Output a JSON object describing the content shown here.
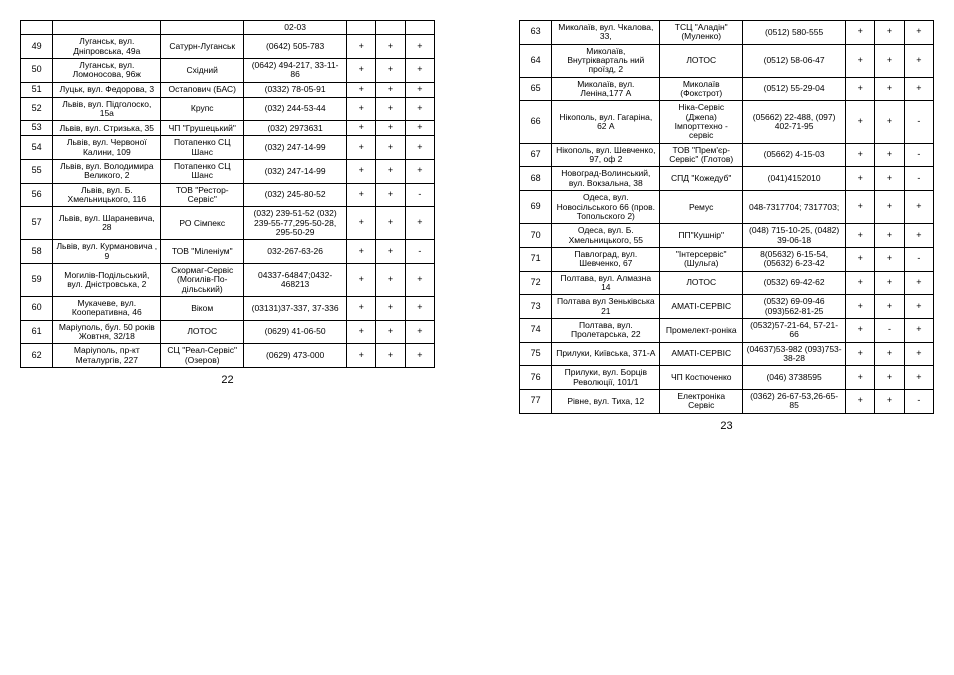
{
  "left": {
    "pagenum": "22",
    "rows": [
      {
        "n": "",
        "addr": "",
        "company": "",
        "phone": "02-03",
        "c1": "",
        "c2": "",
        "c3": ""
      },
      {
        "n": "49",
        "addr": "Луганськ, вул. Дніпровська, 49а",
        "company": "Сатурн-Луганськ",
        "phone": "(0642) 505-783",
        "c1": "+",
        "c2": "+",
        "c3": "+"
      },
      {
        "n": "50",
        "addr": "Луганськ, вул. Ломоносова, 96ж",
        "company": "Східний",
        "phone": "(0642) 494-217, 33-11-86",
        "c1": "+",
        "c2": "+",
        "c3": "+"
      },
      {
        "n": "51",
        "addr": "Луцьк, вул. Федорова, 3",
        "company": "Остапович (БАС)",
        "phone": "(0332) 78-05-91",
        "c1": "+",
        "c2": "+",
        "c3": "+"
      },
      {
        "n": "52",
        "addr": "Львів, вул. Підголоско, 15а",
        "company": "Крупс",
        "phone": "(032) 244-53-44",
        "c1": "+",
        "c2": "+",
        "c3": "+"
      },
      {
        "n": "53",
        "addr": "Львів, вул. Стризька, 35",
        "company": "ЧП \"Грушецький\"",
        "phone": "(032) 2973631",
        "c1": "+",
        "c2": "+",
        "c3": "+"
      },
      {
        "n": "54",
        "addr": "Львів, вул. Червоної Калини, 109",
        "company": "Потапенко СЦ Шанс",
        "phone": "(032) 247-14-99",
        "c1": "+",
        "c2": "+",
        "c3": "+"
      },
      {
        "n": "55",
        "addr": "Львів, вул. Володимира Великого, 2",
        "company": "Потапенко СЦ Шанс",
        "phone": "(032) 247-14-99",
        "c1": "+",
        "c2": "+",
        "c3": "+"
      },
      {
        "n": "56",
        "addr": "Львів, вул. Б. Хмельницького, 116",
        "company": "ТОВ \"Рестор-Сервіс\"",
        "phone": "(032) 245-80-52",
        "c1": "+",
        "c2": "+",
        "c3": "-"
      },
      {
        "n": "57",
        "addr": "Львів, вул. Шараневича, 28",
        "company": "РО Сімпекс",
        "phone": "(032) 239-51-52 (032) 239-55-77,295-50-28, 295-50-29",
        "c1": "+",
        "c2": "+",
        "c3": "+"
      },
      {
        "n": "58",
        "addr": "Львів, вул. Курмановича , 9",
        "company": "ТОВ \"Міленіум\"",
        "phone": "032-267-63-26",
        "c1": "+",
        "c2": "+",
        "c3": "-"
      },
      {
        "n": "59",
        "addr": "Могилів-Подільський, вул. Дністровська, 2",
        "company": "Скормаг-Сервіс (Могилів-По-дільський)",
        "phone": "04337-64847;0432-468213",
        "c1": "+",
        "c2": "+",
        "c3": "+"
      },
      {
        "n": "60",
        "addr": "Мукачеве, вул. Кооперативна, 46",
        "company": "Віком",
        "phone": "(03131)37-337, 37-336",
        "c1": "+",
        "c2": "+",
        "c3": "+"
      },
      {
        "n": "61",
        "addr": "Маріуполь, бул. 50 років Жовтня, 32/18",
        "company": "ЛОТОС",
        "phone": "(0629) 41-06-50",
        "c1": "+",
        "c2": "+",
        "c3": "+"
      },
      {
        "n": "62",
        "addr": "Маріуполь, пр-кт Металургів, 227",
        "company": "СЦ \"Реал-Сервіс\" (Озеров)",
        "phone": "(0629) 473-000",
        "c1": "+",
        "c2": "+",
        "c3": "+"
      }
    ]
  },
  "right": {
    "pagenum": "23",
    "rows": [
      {
        "n": "63",
        "addr": "Миколаїв, вул. Чкалова, 33,",
        "company": "ТСЦ \"Аладін\" (Муленко)",
        "phone": "(0512) 580-555",
        "c1": "+",
        "c2": "+",
        "c3": "+"
      },
      {
        "n": "64",
        "addr": "Миколаїв, Внутрікварталь ний проїзд, 2",
        "company": "ЛОТОС",
        "phone": "(0512) 58-06-47",
        "c1": "+",
        "c2": "+",
        "c3": "+"
      },
      {
        "n": "65",
        "addr": "Миколаїв, вул. Леніна,177 А",
        "company": "Миколаїв (Фокстрот)",
        "phone": "(0512) 55-29-04",
        "c1": "+",
        "c2": "+",
        "c3": "+"
      },
      {
        "n": "66",
        "addr": "Нікополь, вул. Гагаріна, 62 А",
        "company": "Ніка-Сервіс (Джепа) Імпорттехно - сервіс",
        "phone": "(05662) 22-488, (097) 402-71-95",
        "c1": "+",
        "c2": "+",
        "c3": "-"
      },
      {
        "n": "67",
        "addr": "Нікополь, вул. Шевченко, 97, оф 2",
        "company": "ТОВ \"Прем'єр-Сервіс\" (Глотов)",
        "phone": "(05662) 4-15-03",
        "c1": "+",
        "c2": "+",
        "c3": "-"
      },
      {
        "n": "68",
        "addr": "Новоград-Волинський, вул. Вокзальна, 38",
        "company": "СПД \"Кожедуб\"",
        "phone": "(041)4152010",
        "c1": "+",
        "c2": "+",
        "c3": "-"
      },
      {
        "n": "69",
        "addr": "Одеса,  вул. Новосільського 66 (пров. Топольского 2)",
        "company": "Ремус",
        "phone": "048-7317704; 7317703;",
        "c1": "+",
        "c2": "+",
        "c3": "+"
      },
      {
        "n": "70",
        "addr": "Одеса, вул. Б. Хмельницького, 55",
        "company": "ПП\"Кушнір\"",
        "phone": "(048) 715-10-25, (0482) 39-06-18",
        "c1": "+",
        "c2": "+",
        "c3": "+"
      },
      {
        "n": "71",
        "addr": "Павлоград, вул. Шевченко, 67",
        "company": "\"Інтерсервіс\" (Шульга)",
        "phone": "8(05632) 6-15-54, (05632) 6-23-42",
        "c1": "+",
        "c2": "+",
        "c3": "-"
      },
      {
        "n": "72",
        "addr": "Полтава, вул. Алмазна 14",
        "company": "ЛОТОС",
        "phone": "(0532) 69-42-62",
        "c1": "+",
        "c2": "+",
        "c3": "+"
      },
      {
        "n": "73",
        "addr": "Полтава вул Зеньківська 21",
        "company": "АМАТІ-СЕРВІС",
        "phone": "(0532) 69-09-46 (093)562-81-25",
        "c1": "+",
        "c2": "+",
        "c3": "+"
      },
      {
        "n": "74",
        "addr": "Полтава, вул. Пролетарська, 22",
        "company": "Промелект-роніка",
        "phone": "(0532)57-21-64, 57-21-66",
        "c1": "+",
        "c2": "-",
        "c3": "+"
      },
      {
        "n": "75",
        "addr": "Прилуки, Київська, 371-А",
        "company": "АМАТІ-СЕРВІС",
        "phone": "(04637)53-982 (093)753-38-28",
        "c1": "+",
        "c2": "+",
        "c3": "+"
      },
      {
        "n": "76",
        "addr": "Прилуки, вул. Борців Революції, 101/1",
        "company": "ЧП Костюченко",
        "phone": "(046) 3738595",
        "c1": "+",
        "c2": "+",
        "c3": "+"
      },
      {
        "n": "77",
        "addr": "Рівне, вул. Тиха, 12",
        "company": "Електроніка Сервіс",
        "phone": "(0362) 26-67-53,26-65-85",
        "c1": "+",
        "c2": "+",
        "c3": "-"
      }
    ]
  }
}
